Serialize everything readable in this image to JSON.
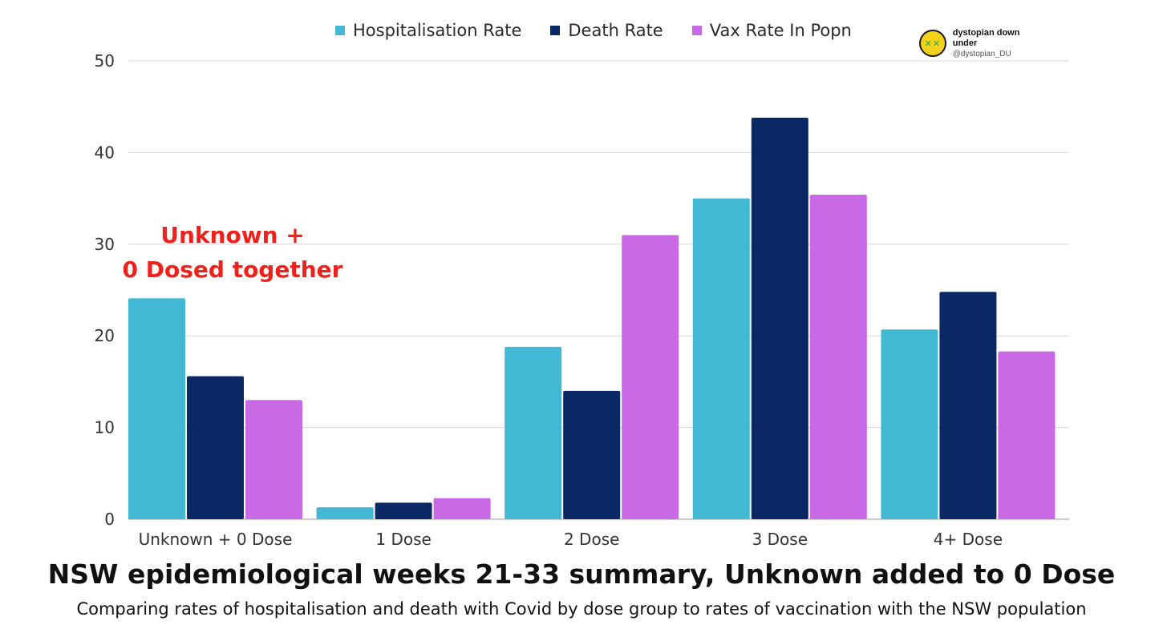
{
  "legend": [
    {
      "label": "Hospitalisation Rate",
      "color": "#42b8d5"
    },
    {
      "label": "Death Rate",
      "color": "#0a2864"
    },
    {
      "label": "Vax Rate In Popn",
      "color": "#c969e6"
    }
  ],
  "brand": {
    "name": "dystopian down under",
    "handle": "@dystopian_DU",
    "logo_icon": "dizzy-face-icon"
  },
  "annotation": {
    "line1": "Unknown +",
    "line2": "0 Dosed together",
    "color": "#f0201b"
  },
  "chart_data": {
    "type": "bar",
    "title": "NSW epidemiological weeks 21-33 summary, Unknown added to 0 Dose",
    "subtitle": "Comparing rates of hospitalisation and death with Covid by dose group to rates of vaccination with the NSW population",
    "categories": [
      "Unknown + 0 Dose",
      "1 Dose",
      "2 Dose",
      "3 Dose",
      "4+ Dose"
    ],
    "series": [
      {
        "name": "Hospitalisation Rate",
        "color": "#42b8d5",
        "values": [
          24.1,
          1.3,
          18.8,
          35.0,
          20.7
        ]
      },
      {
        "name": "Death Rate",
        "color": "#0a2864",
        "values": [
          15.6,
          1.8,
          14.0,
          43.8,
          24.8
        ]
      },
      {
        "name": "Vax Rate In Popn",
        "color": "#c969e6",
        "values": [
          13.0,
          2.3,
          31.0,
          35.4,
          18.3
        ]
      }
    ],
    "ylim": [
      0,
      50
    ],
    "yticks": [
      0,
      10,
      20,
      30,
      40,
      50
    ],
    "grid": true,
    "legend_position": "top",
    "xlabel": "",
    "ylabel": ""
  }
}
